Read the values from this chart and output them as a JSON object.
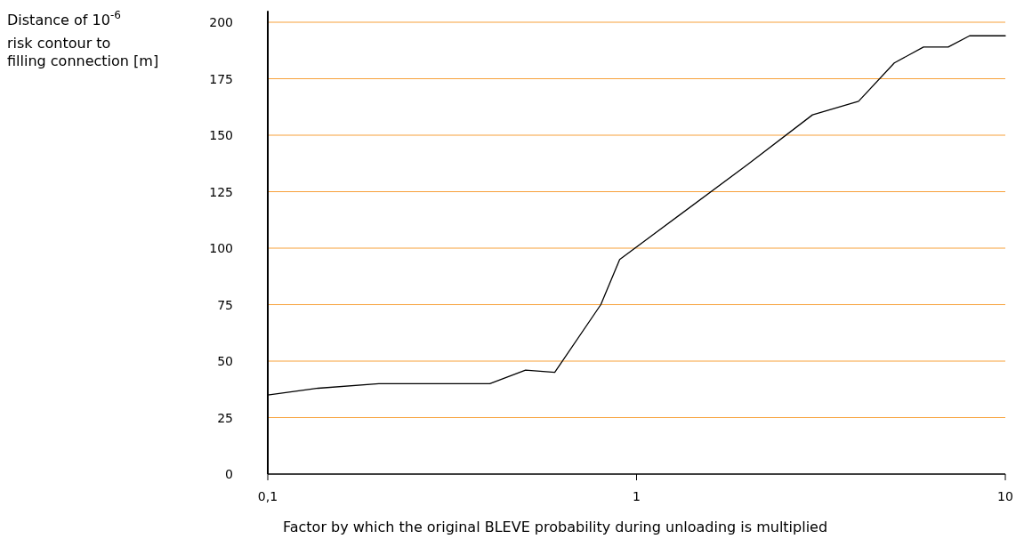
{
  "chart_data": {
    "type": "line",
    "ylabel": "Distance of 10$^{-6}$ risk contour to filling connection [m]",
    "xlabel": "Factor by which the original BLEVE probability during unloading is multiplied",
    "log": "x",
    "x": [
      0.1,
      0.137,
      0.2,
      0.4,
      0.5,
      0.6,
      0.8,
      0.9,
      2,
      3,
      4,
      5,
      6,
      7,
      8,
      10
    ],
    "series": [
      {
        "color": "#000000",
        "values": [
          35,
          38,
          40,
          40,
          46,
          45,
          75,
          95,
          137,
          159,
          165,
          182,
          189,
          189,
          194,
          194
        ]
      }
    ],
    "xlim": [
      0.1,
      10
    ],
    "xticks": [
      {
        "value": 0.1,
        "label": "0,1"
      },
      1,
      10
    ],
    "ylim": [
      0,
      205
    ],
    "yticks": [
      0,
      25,
      50,
      75,
      100,
      125,
      150,
      175,
      200
    ],
    "grid": "y",
    "marker": "none",
    "line_style": "solid"
  }
}
